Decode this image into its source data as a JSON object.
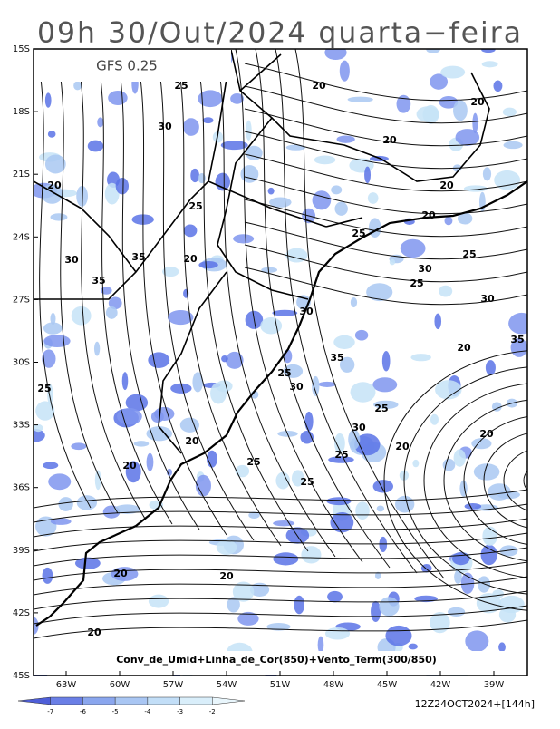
{
  "header": {
    "title": "09h 30/Out/2024 quarta−feira",
    "model": "GFS 0.25"
  },
  "map": {
    "lat_labels": [
      "15S",
      "18S",
      "21S",
      "24S",
      "27S",
      "30S",
      "33S",
      "36S",
      "39S",
      "42S",
      "45S"
    ],
    "lon_labels": [
      "63W",
      "60W",
      "57W",
      "54W",
      "51W",
      "48W",
      "45W",
      "42W",
      "39W"
    ],
    "contour_labels": [
      "25",
      "20",
      "20",
      "30",
      "20",
      "20",
      "20",
      "25",
      "20",
      "25",
      "35",
      "30",
      "20",
      "25",
      "30",
      "25",
      "35",
      "30",
      "30",
      "20",
      "35",
      "35",
      "25",
      "30",
      "25",
      "25",
      "30",
      "20",
      "20",
      "20",
      "25",
      "25",
      "20",
      "25",
      "20",
      "20",
      "20"
    ],
    "caption": "Conv_de_Umid+Linha_de_Cor(850)+Vento_Term(300/850)"
  },
  "legend": {
    "labels": [
      -7,
      -6,
      -5,
      -4,
      -3,
      -2
    ]
  },
  "footer": {
    "run": "12Z24OCT2024+[144h]"
  }
}
